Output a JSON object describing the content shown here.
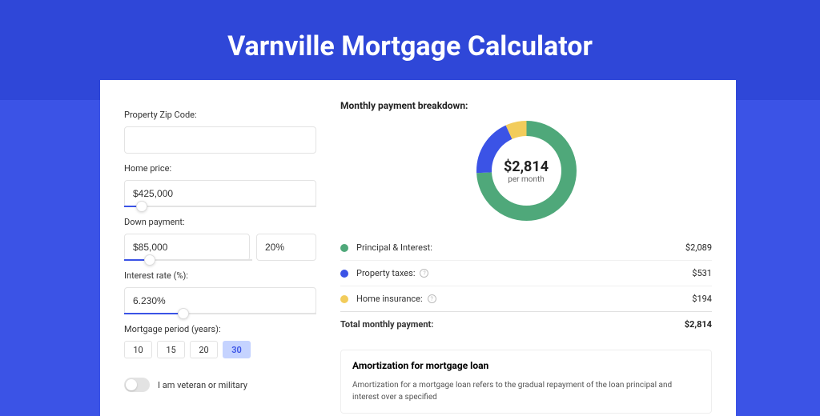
{
  "header": {
    "title": "Varnville Mortgage Calculator"
  },
  "form": {
    "zip_label": "Property Zip Code:",
    "zip_value": "",
    "home_price_label": "Home price:",
    "home_price_value": "$425,000",
    "home_price_slider_pct": 9,
    "down_label": "Down payment:",
    "down_value": "$85,000",
    "down_pct_value": "20%",
    "down_slider_pct": 20,
    "rate_label": "Interest rate (%):",
    "rate_value": "6.230%",
    "rate_slider_pct": 31,
    "period_label": "Mortgage period (years):",
    "periods": [
      "10",
      "15",
      "20",
      "30"
    ],
    "period_active_idx": 3,
    "veteran_label": "I am veteran or military"
  },
  "breakdown": {
    "title": "Monthly payment breakdown:",
    "donut": {
      "amount": "$2,814",
      "sub": "per month",
      "size": 125,
      "stroke": 19,
      "segments": [
        {
          "color": "#4fa87a",
          "pct": 74.2
        },
        {
          "color": "#3b53e6",
          "pct": 18.9
        },
        {
          "color": "#f2cc5b",
          "pct": 6.9
        }
      ]
    },
    "rows": [
      {
        "dot": "#4fa87a",
        "label": "Principal & Interest:",
        "info": false,
        "value": "$2,089"
      },
      {
        "dot": "#3b53e6",
        "label": "Property taxes:",
        "info": true,
        "value": "$531"
      },
      {
        "dot": "#f2cc5b",
        "label": "Home insurance:",
        "info": true,
        "value": "$194"
      }
    ],
    "total_label": "Total monthly payment:",
    "total_value": "$2,814"
  },
  "amort": {
    "title": "Amortization for mortgage loan",
    "text": "Amortization for a mortgage loan refers to the gradual repayment of the loan principal and interest over a specified"
  },
  "colors": {
    "bg_outer": "#3b53e6",
    "bg_header": "#2f47d8",
    "card": "#ffffff",
    "border": "#e3e3e3"
  }
}
